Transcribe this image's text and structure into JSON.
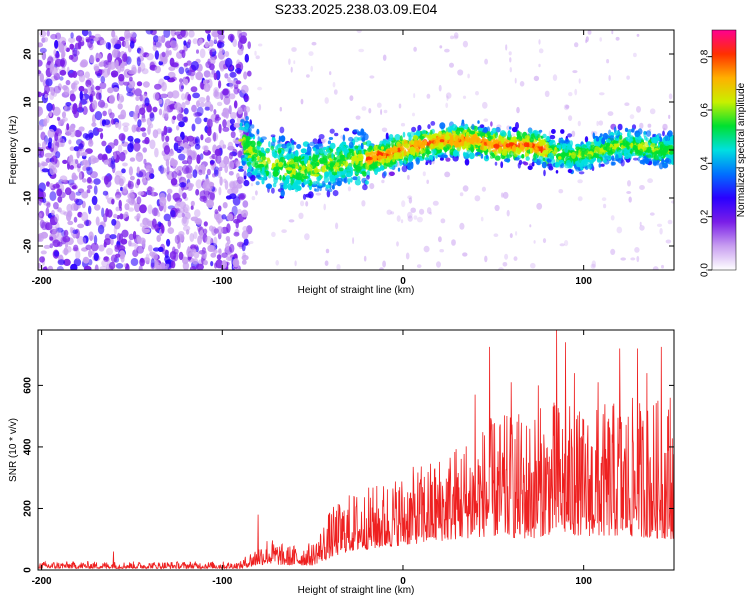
{
  "title": "S233.2025.238.03.09.E04",
  "chart_data": [
    {
      "type": "heatmap",
      "title": "S233.2025.238.03.09.E04",
      "xlabel": "Height of straight line (km)",
      "ylabel": "Frequency (Hz)",
      "xlim": [
        -202,
        150
      ],
      "ylim": [
        -25,
        25
      ],
      "xticks": [
        -200,
        -100,
        0,
        100
      ],
      "yticks": [
        -20,
        -10,
        0,
        10,
        20
      ],
      "ridge": {
        "x": [
          -90,
          -80,
          -70,
          -60,
          -50,
          -40,
          -30,
          -20,
          -10,
          0,
          10,
          20,
          30,
          40,
          50,
          60,
          70,
          80,
          90,
          100,
          110,
          120,
          130,
          140,
          150
        ],
        "y": [
          2,
          -2,
          -3,
          -4,
          -4,
          -3,
          -2,
          -2,
          -1,
          0,
          1,
          2,
          2,
          2,
          1,
          1,
          1,
          0,
          -1,
          -1,
          0,
          1,
          1,
          0,
          0
        ]
      },
      "noise_region_x": [
        -202,
        -85
      ],
      "colorbar": {
        "label": "Normalized spectral amplitude",
        "range": [
          0.0,
          0.9
        ],
        "ticks": [
          0.0,
          0.2,
          0.4,
          0.6,
          0.8
        ],
        "tick_labels": [
          "0.0",
          "0.2",
          "0.4",
          "0.6",
          "0.8"
        ],
        "colors": [
          "#ffffff",
          "#c89ef0",
          "#7a1ee8",
          "#2a00ff",
          "#0070ff",
          "#00e0e0",
          "#00e030",
          "#c8f000",
          "#ffb000",
          "#ff3000",
          "#ff0090"
        ]
      }
    },
    {
      "type": "line",
      "xlabel": "Height of straight line (km)",
      "ylabel": "SNR (10 * v/v)",
      "xlim": [
        -202,
        150
      ],
      "ylim": [
        0,
        780
      ],
      "xticks": [
        -200,
        -100,
        0,
        100
      ],
      "yticks": [
        0,
        200,
        400,
        600
      ],
      "color": "#ee2020",
      "envelope": {
        "x": [
          -202,
          -90,
          -85,
          -75,
          -65,
          -50,
          -40,
          -30,
          -15,
          0,
          15,
          30,
          50,
          70,
          85,
          100,
          120,
          150
        ],
        "base": [
          5,
          5,
          10,
          20,
          15,
          15,
          40,
          60,
          70,
          80,
          90,
          100,
          110,
          100,
          120,
          110,
          110,
          100
        ],
        "peak": [
          28,
          28,
          60,
          110,
          80,
          90,
          200,
          250,
          280,
          320,
          360,
          420,
          500,
          520,
          560,
          520,
          560,
          560
        ]
      },
      "spikes": [
        {
          "x": -160,
          "y": 60
        },
        {
          "x": -80,
          "y": 180
        },
        {
          "x": 40,
          "y": 570
        },
        {
          "x": 48,
          "y": 725
        },
        {
          "x": 60,
          "y": 610
        },
        {
          "x": 75,
          "y": 600
        },
        {
          "x": 85,
          "y": 780
        },
        {
          "x": 90,
          "y": 740
        },
        {
          "x": 95,
          "y": 640
        },
        {
          "x": 108,
          "y": 610
        },
        {
          "x": 120,
          "y": 720
        },
        {
          "x": 130,
          "y": 720
        },
        {
          "x": 135,
          "y": 640
        },
        {
          "x": 143,
          "y": 725
        },
        {
          "x": 148,
          "y": 560
        }
      ]
    }
  ]
}
